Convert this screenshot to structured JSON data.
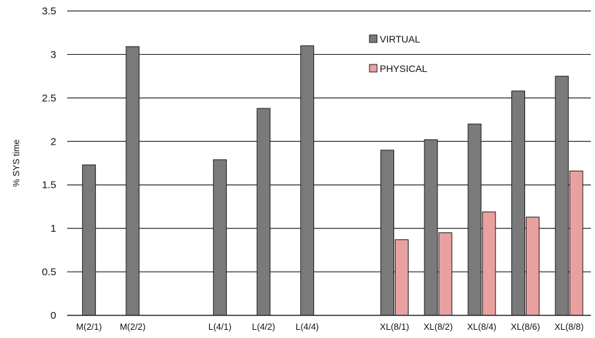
{
  "chart_data": {
    "type": "bar",
    "title": "",
    "xlabel": "",
    "ylabel": "% SYS time",
    "ylim": [
      0,
      3.5
    ],
    "yticks": [
      "0",
      "0.5",
      "1",
      "1.5",
      "2",
      "2.5",
      "3",
      "3.5"
    ],
    "grid": true,
    "legend_position": "top-right",
    "slots": [
      "M(2/1)",
      "M(2/2)",
      "",
      "L(4/1)",
      "L(4/2)",
      "L(4/4)",
      "",
      "XL(8/1)",
      "XL(8/2)",
      "XL(8/4)",
      "XL(8/6)",
      "XL(8/8)"
    ],
    "series": [
      {
        "name": "VIRTUAL",
        "color": "#7a7a7a",
        "values": [
          1.73,
          3.09,
          null,
          1.79,
          2.38,
          3.1,
          null,
          1.9,
          2.02,
          2.2,
          2.58,
          2.75
        ]
      },
      {
        "name": "PHYSICAL",
        "color": "#e8a0a0",
        "values": [
          null,
          null,
          null,
          null,
          null,
          null,
          null,
          0.87,
          0.95,
          1.19,
          1.13,
          1.66
        ]
      }
    ]
  }
}
